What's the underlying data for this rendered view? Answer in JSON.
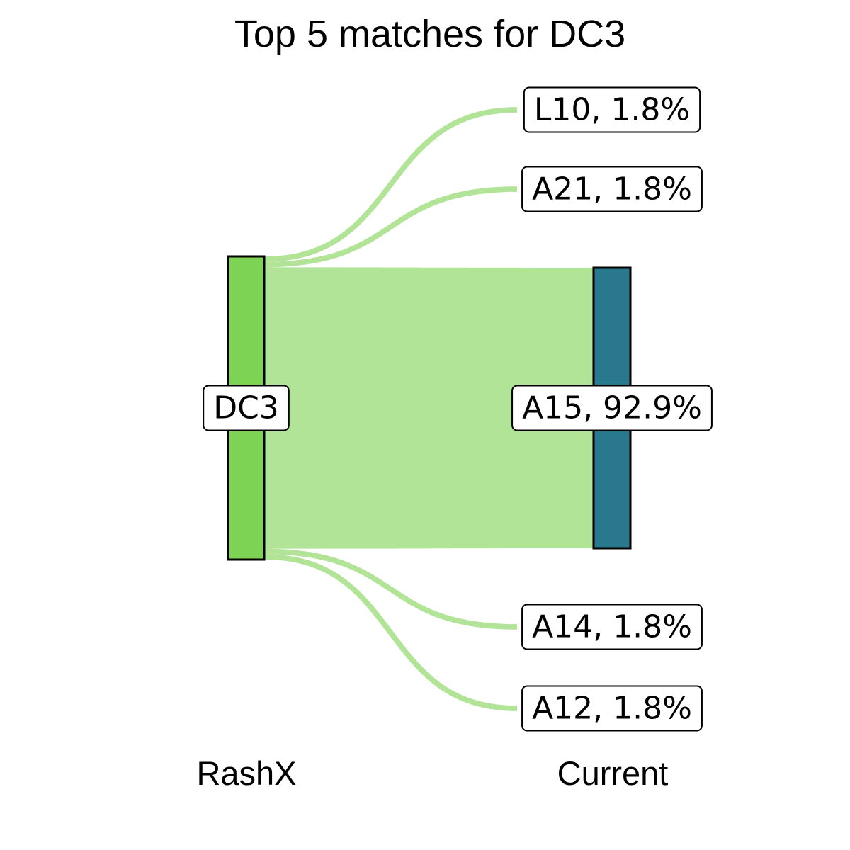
{
  "chart_data": {
    "type": "sankey",
    "title": "Top 5 matches for DC3",
    "axis_labels": [
      "RashX",
      "Current"
    ],
    "source": {
      "name": "DC3",
      "label": "DC3",
      "color": "#7dd353"
    },
    "flow_color": "#b1e497",
    "targets": [
      {
        "name": "L10",
        "label": "L10, 1.8%",
        "percent": 1.8,
        "color": null
      },
      {
        "name": "A21",
        "label": "A21, 1.8%",
        "percent": 1.8,
        "color": null
      },
      {
        "name": "A15",
        "label": "A15, 92.9%",
        "percent": 92.9,
        "color": "#29788e"
      },
      {
        "name": "A14",
        "label": "A14, 1.8%",
        "percent": 1.8,
        "color": null
      },
      {
        "name": "A12",
        "label": "A12, 1.8%",
        "percent": 1.8,
        "color": null
      }
    ]
  }
}
